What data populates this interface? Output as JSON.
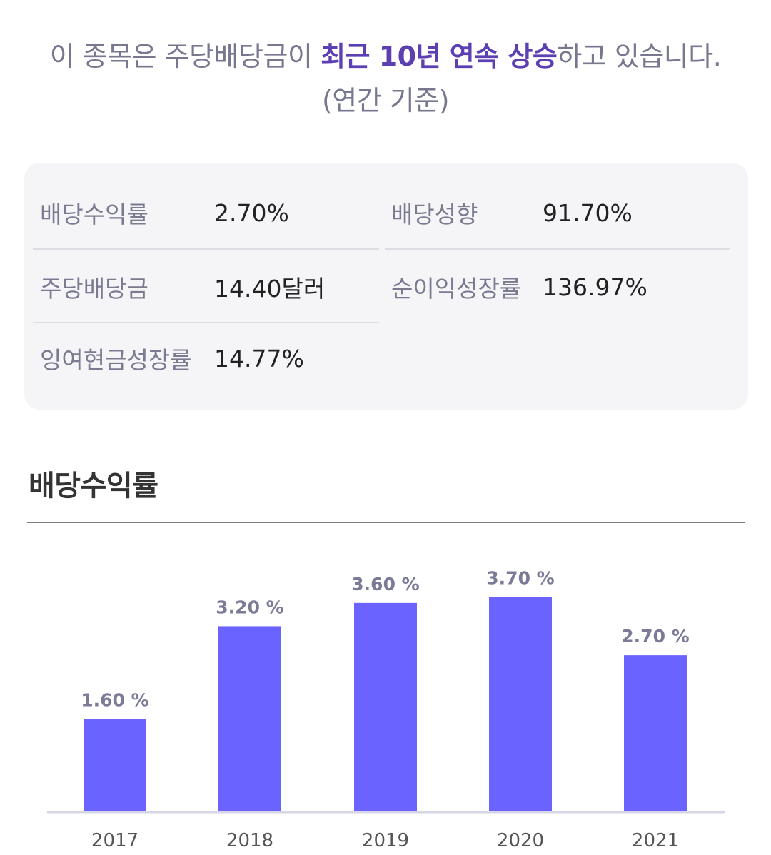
{
  "headline": {
    "prefix": "이 종목은 주당배당금이 ",
    "highlight": "최근 10년 연속 상승",
    "suffix": "하고 있습니다. (연간 기준)"
  },
  "metrics": {
    "dividend_yield": {
      "label": "배당수익률",
      "value": "2.70%"
    },
    "payout_ratio": {
      "label": "배당성향",
      "value": "91.70%"
    },
    "dividend_per_share": {
      "label": "주당배당금",
      "value": "14.40달러"
    },
    "net_income_growth": {
      "label": "순이익성장률",
      "value": "136.97%"
    },
    "fcf_growth": {
      "label": "잉여현금성장률",
      "value": "14.77%"
    }
  },
  "section": {
    "title": "배당수익률"
  },
  "colors": {
    "bar": "#6b63ff",
    "highlight": "#5c3fb2",
    "value_label": "#7b7b97",
    "axis": "#d6d6e6"
  },
  "chart_data": {
    "type": "bar",
    "title": "배당수익률",
    "categories": [
      "2017",
      "2018",
      "2019",
      "2020",
      "2021"
    ],
    "values": [
      1.6,
      3.2,
      3.6,
      3.7,
      2.7
    ],
    "value_labels": [
      "1.60 %",
      "3.20 %",
      "3.60 %",
      "3.70 %",
      "2.70 %"
    ],
    "xlabel": "",
    "ylabel": "",
    "ylim": [
      0,
      4.2
    ],
    "grid": false,
    "legend": "none"
  }
}
